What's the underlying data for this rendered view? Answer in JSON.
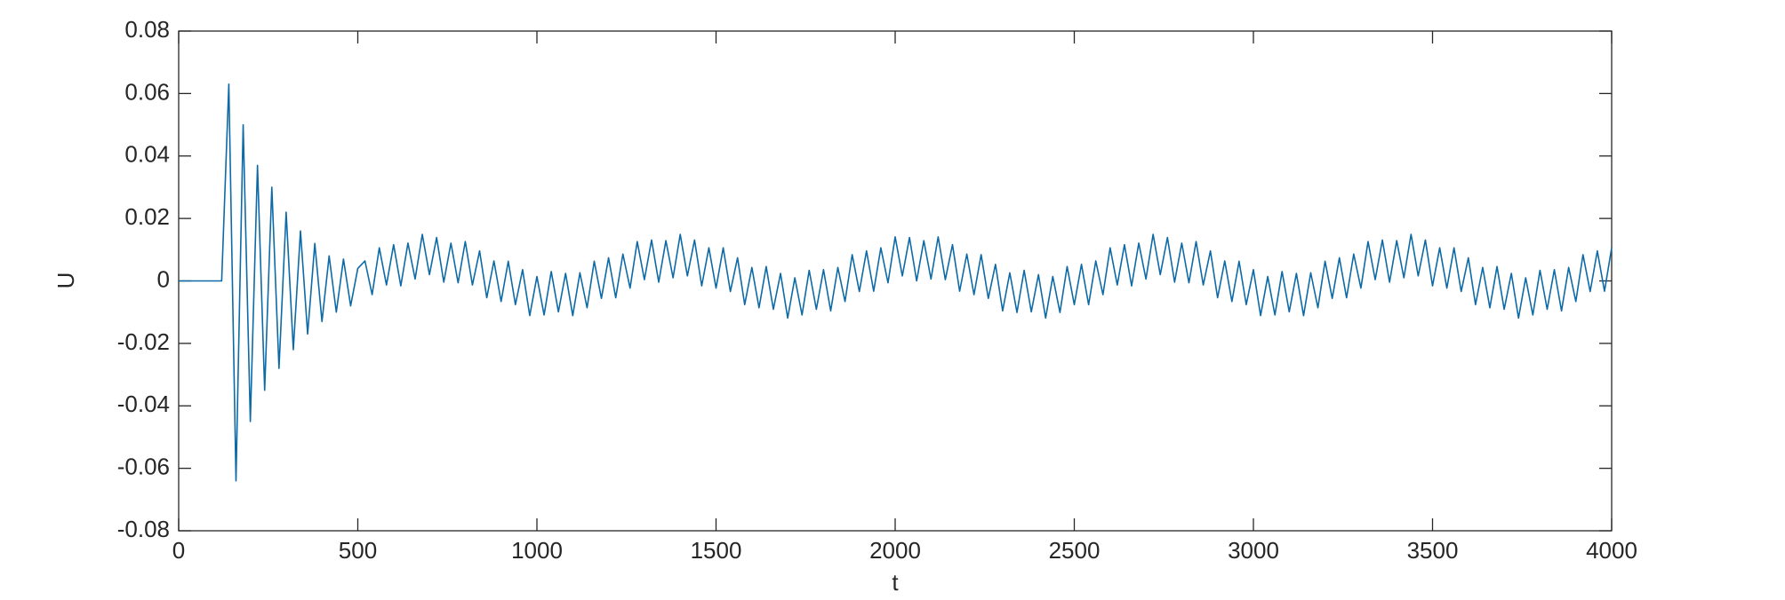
{
  "chart_data": {
    "type": "line",
    "xlabel": "t",
    "ylabel": "U",
    "color": "#0e6aa6",
    "xlim": [
      0,
      4000
    ],
    "xticks": [
      0,
      500,
      1000,
      1500,
      2000,
      2500,
      3000,
      3500,
      4000
    ],
    "ylim": [
      -0.08,
      0.08
    ],
    "yticks": [
      -0.08,
      -0.06,
      -0.04,
      -0.02,
      0,
      0.02,
      0.04,
      0.06,
      0.08
    ],
    "grid": false,
    "x": [
      0,
      20,
      40,
      60,
      80,
      100,
      120,
      140,
      160,
      180,
      200,
      220,
      240,
      260,
      280,
      300,
      320,
      340,
      360,
      380,
      400,
      420,
      440,
      460,
      480,
      500,
      520,
      540,
      560,
      580,
      600,
      620,
      640,
      660,
      680,
      700,
      720,
      740,
      760,
      780,
      800,
      820,
      840,
      860,
      880,
      900,
      920,
      940,
      960,
      980,
      1000,
      1020,
      1040,
      1060,
      1080,
      1100,
      1120,
      1140,
      1160,
      1180,
      1200,
      1220,
      1240,
      1260,
      1280,
      1300,
      1320,
      1340,
      1360,
      1380,
      1400,
      1420,
      1440,
      1460,
      1480,
      1500,
      1520,
      1540,
      1560,
      1580,
      1600,
      1620,
      1640,
      1660,
      1680,
      1700,
      1720,
      1740,
      1760,
      1780,
      1800,
      1820,
      1840,
      1860,
      1880,
      1900,
      1920,
      1940,
      1960,
      1980,
      2000,
      2020,
      2040,
      2060,
      2080,
      2100,
      2120,
      2140,
      2160,
      2180,
      2200,
      2220,
      2240,
      2260,
      2280,
      2300,
      2320,
      2340,
      2360,
      2380,
      2400,
      2420,
      2440,
      2460,
      2480,
      2500,
      2520,
      2540,
      2560,
      2580,
      2600,
      2620,
      2640,
      2660,
      2680,
      2700,
      2720,
      2740,
      2760,
      2780,
      2800,
      2820,
      2840,
      2860,
      2880,
      2900,
      2920,
      2940,
      2960,
      2980,
      3000,
      3020,
      3040,
      3060,
      3080,
      3100,
      3120,
      3140,
      3160,
      3180,
      3200,
      3220,
      3240,
      3260,
      3280,
      3300,
      3320,
      3340,
      3360,
      3380,
      3400,
      3420,
      3440,
      3460,
      3480,
      3500,
      3520,
      3540,
      3560,
      3580,
      3600,
      3620,
      3640,
      3660,
      3680,
      3700,
      3720,
      3740,
      3760,
      3780,
      3800,
      3820,
      3840,
      3860,
      3880,
      3900,
      3920,
      3940,
      3960,
      3980,
      4000
    ],
    "values": [
      0,
      0,
      0,
      0,
      0,
      0,
      0,
      0.063,
      -0.064,
      0.05,
      -0.045,
      0.037,
      -0.035,
      0.03,
      -0.028,
      0.022,
      -0.022,
      0.016,
      -0.017,
      0.012,
      -0.013,
      0.008,
      -0.01,
      0.007,
      -0.008,
      0.004,
      0.0064,
      -0.0044,
      0.0106,
      -0.0013,
      0.0116,
      -0.0016,
      0.0121,
      0.0006,
      0.0149,
      0.002,
      0.0139,
      -0.0004,
      0.0121,
      -0.0006,
      0.0126,
      -0.0013,
      0.0096,
      -0.0054,
      0.0064,
      -0.0066,
      0.0063,
      -0.0076,
      0.0036,
      -0.0111,
      0.0014,
      -0.0109,
      0.003,
      -0.0099,
      0.0024,
      -0.0111,
      0.0026,
      -0.0086,
      0.0063,
      -0.0056,
      0.0074,
      -0.0054,
      0.0086,
      -0.0023,
      0.0126,
      0.0004,
      0.0131,
      -0.0004,
      0.0129,
      0.001,
      0.0149,
      0.0016,
      0.0131,
      -0.0016,
      0.0106,
      -0.0023,
      0.0106,
      -0.0034,
      0.0074,
      -0.0076,
      0.0043,
      -0.0086,
      0.0046,
      -0.0091,
      0.0024,
      -0.0119,
      0.001,
      -0.0109,
      0.0034,
      -0.0091,
      0.0036,
      -0.0096,
      0.0043,
      -0.0066,
      0.0084,
      -0.0034,
      0.0096,
      -0.0033,
      0.0106,
      -0.0006,
      0.0141,
      0.0016,
      0.0139,
      0,
      0.0129,
      0.0006,
      0.0141,
      0.0004,
      0.0116,
      -0.0033,
      0.0086,
      -0.0044,
      0.0084,
      -0.0056,
      0.0053,
      -0.0096,
      0.0026,
      -0.0101,
      0.0034,
      -0.0099,
      0.002,
      -0.0119,
      0.0014,
      -0.0101,
      0.0046,
      -0.0076,
      0.0053,
      -0.0076,
      0.0064,
      -0.0044,
      0.0106,
      -0.0013,
      0.0116,
      -0.0016,
      0.0121,
      0.0006,
      0.0149,
      0.002,
      0.0139,
      -0.0004,
      0.0121,
      -0.0006,
      0.0126,
      -0.0013,
      0.0096,
      -0.0054,
      0.0064,
      -0.0066,
      0.0063,
      -0.0076,
      0.0036,
      -0.0111,
      0.0014,
      -0.0109,
      0.003,
      -0.0099,
      0.0024,
      -0.0111,
      0.0026,
      -0.0086,
      0.0063,
      -0.0056,
      0.0074,
      -0.0054,
      0.0086,
      -0.0023,
      0.0126,
      0.0004,
      0.0131,
      -0.0004,
      0.0129,
      0.001,
      0.0149,
      0.0016,
      0.0131,
      -0.0016,
      0.0106,
      -0.0023,
      0.0106,
      -0.0034,
      0.0074,
      -0.0076,
      0.0043,
      -0.0086,
      0.0046,
      -0.0091,
      0.0024,
      -0.0119,
      0.001,
      -0.0109,
      0.0034,
      -0.0091,
      0.0036,
      -0.0096,
      0.0043,
      -0.0066,
      0.0084,
      -0.0034,
      0.0096,
      -0.0033,
      0.0106
    ]
  }
}
